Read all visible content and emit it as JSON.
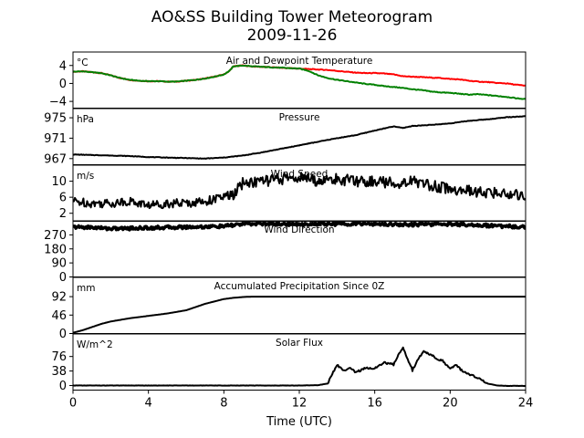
{
  "figure": {
    "title_line1": "AO&SS Building Tower Meteorogram",
    "title_line2": "2009-11-26",
    "xlabel": "Time (UTC)",
    "xticks": [
      "0",
      "4",
      "8",
      "12",
      "16",
      "20",
      "24"
    ]
  },
  "chart_data": [
    {
      "type": "line",
      "title": "Air and Dewpoint Temperature",
      "unit": "°C",
      "ylim": [
        -5.5,
        7
      ],
      "yticks": [
        -4,
        0,
        4
      ],
      "ytick_labels": [
        "−4",
        "0",
        "4"
      ],
      "xlim": [
        0,
        24
      ],
      "series": [
        {
          "color": "#ff0000",
          "x": [
            0,
            0.5,
            1,
            1.5,
            2,
            2.5,
            3,
            3.5,
            4,
            4.5,
            5,
            5.5,
            6,
            6.5,
            7,
            7.5,
            8,
            8.3,
            8.5,
            9,
            9.5,
            10,
            10.5,
            11,
            11.5,
            12,
            12.5,
            13,
            13.5,
            14,
            14.5,
            15,
            15.5,
            16,
            16.5,
            17,
            17.5,
            18,
            18.5,
            19,
            19.5,
            20,
            20.5,
            21,
            21.5,
            22,
            22.5,
            23,
            23.5,
            24
          ],
          "y": [
            2.6,
            2.7,
            2.5,
            2.3,
            1.8,
            1.2,
            0.8,
            0.6,
            0.5,
            0.5,
            0.4,
            0.4,
            0.6,
            0.8,
            1.1,
            1.5,
            2.0,
            2.8,
            3.8,
            4.0,
            3.8,
            3.7,
            3.6,
            3.5,
            3.4,
            3.3,
            3.2,
            3.1,
            3.0,
            2.8,
            2.6,
            2.4,
            2.3,
            2.3,
            2.2,
            2.0,
            1.6,
            1.5,
            1.4,
            1.3,
            1.2,
            1.0,
            0.9,
            0.6,
            0.4,
            0.3,
            0.1,
            0.0,
            -0.3,
            -0.5
          ]
        },
        {
          "color": "#008000",
          "x": [
            0,
            0.5,
            1,
            1.5,
            2,
            2.5,
            3,
            3.5,
            4,
            4.5,
            5,
            5.5,
            6,
            6.5,
            7,
            7.5,
            8,
            8.3,
            8.5,
            9,
            9.5,
            10,
            10.5,
            11,
            11.5,
            12,
            12.5,
            13,
            13.5,
            14,
            14.5,
            15,
            15.5,
            16,
            16.5,
            17,
            17.5,
            18,
            18.5,
            19,
            19.5,
            20,
            20.5,
            21,
            21.5,
            22,
            22.5,
            23,
            23.5,
            24
          ],
          "y": [
            2.6,
            2.7,
            2.5,
            2.3,
            1.8,
            1.2,
            0.8,
            0.6,
            0.5,
            0.5,
            0.4,
            0.4,
            0.6,
            0.8,
            1.1,
            1.5,
            2.0,
            2.8,
            3.8,
            4.0,
            3.8,
            3.7,
            3.6,
            3.5,
            3.4,
            3.3,
            2.8,
            1.8,
            1.2,
            0.8,
            0.5,
            0.2,
            -0.1,
            -0.3,
            -0.6,
            -0.8,
            -1.0,
            -1.3,
            -1.5,
            -1.8,
            -2.0,
            -2.1,
            -2.3,
            -2.5,
            -2.4,
            -2.6,
            -2.8,
            -3.0,
            -3.3,
            -3.5
          ]
        }
      ]
    },
    {
      "type": "line",
      "title": "Pressure",
      "unit": "hPa",
      "ylim": [
        965.8,
        976.8
      ],
      "yticks": [
        967,
        971,
        975
      ],
      "ytick_labels": [
        "967",
        "971",
        "975"
      ],
      "xlim": [
        0,
        24
      ],
      "series": [
        {
          "color": "#000000",
          "x": [
            0,
            1,
            2,
            3,
            4,
            5,
            6,
            7,
            8,
            9,
            10,
            11,
            12,
            13,
            14,
            15,
            16,
            17,
            17.5,
            18,
            19,
            20,
            21,
            22,
            23,
            24
          ],
          "y": [
            967.8,
            967.7,
            967.6,
            967.5,
            967.3,
            967.2,
            967.1,
            967.0,
            967.2,
            967.6,
            968.2,
            968.9,
            969.6,
            970.3,
            971.0,
            971.6,
            972.5,
            973.3,
            973.0,
            973.4,
            973.6,
            973.9,
            974.4,
            974.7,
            975.1,
            975.3
          ]
        }
      ]
    },
    {
      "type": "line",
      "title": "Wind Speed",
      "unit": "m/s",
      "ylim": [
        0,
        14
      ],
      "yticks": [
        2,
        6,
        10
      ],
      "ytick_labels": [
        "2",
        "6",
        "10"
      ],
      "xlim": [
        0,
        24
      ],
      "series": [
        {
          "color": "#000000",
          "x": [
            0,
            1,
            2,
            3,
            4,
            5,
            6,
            7,
            8,
            8.5,
            9,
            10,
            11,
            12,
            13,
            14,
            15,
            16,
            17,
            18,
            19,
            20,
            21,
            22,
            23,
            24
          ],
          "y": [
            5.0,
            4.5,
            4.5,
            5.0,
            4.0,
            4.5,
            4.5,
            5.0,
            6.0,
            6.5,
            9.5,
            10.0,
            10.5,
            11.0,
            10.0,
            10.5,
            10.0,
            10.0,
            9.5,
            10.0,
            9.0,
            8.0,
            7.5,
            7.0,
            7.0,
            6.5
          ]
        }
      ]
    },
    {
      "type": "line",
      "title": "Wind Direction",
      "unit": "",
      "ylim": [
        0,
        360
      ],
      "yticks": [
        0,
        90,
        180,
        270
      ],
      "ytick_labels": [
        "0",
        "90",
        "180",
        "270"
      ],
      "xlim": [
        0,
        24
      ],
      "series": [
        {
          "color": "#000000",
          "x": [
            0,
            1,
            2,
            3,
            4,
            5,
            6,
            7,
            8,
            9,
            10,
            11,
            12,
            13,
            14,
            15,
            16,
            17,
            18,
            19,
            20,
            21,
            22,
            23,
            24
          ],
          "y": [
            320,
            318,
            310,
            312,
            315,
            318,
            320,
            322,
            325,
            340,
            342,
            340,
            338,
            340,
            340,
            342,
            340,
            338,
            336,
            338,
            340,
            335,
            330,
            325,
            320
          ]
        }
      ]
    },
    {
      "type": "line",
      "title": "Accumulated Precipitation Since 0Z",
      "unit": "mm",
      "ylim": [
        0,
        140
      ],
      "yticks": [
        0,
        46,
        92
      ],
      "ytick_labels": [
        "0",
        "46",
        "92"
      ],
      "xlim": [
        0,
        24
      ],
      "series": [
        {
          "color": "#000000",
          "x": [
            0,
            0.5,
            1,
            1.5,
            2,
            3,
            4,
            5,
            6,
            6.5,
            7,
            7.5,
            8,
            8.5,
            9,
            9.5,
            24
          ],
          "y": [
            2,
            8,
            16,
            24,
            30,
            38,
            44,
            50,
            58,
            66,
            74,
            80,
            86,
            89,
            91,
            92,
            92
          ]
        }
      ]
    },
    {
      "type": "line",
      "title": "Solar Flux",
      "unit": "W/m^2",
      "ylim": [
        -12,
        135
      ],
      "yticks": [
        0,
        38,
        76
      ],
      "ytick_labels": [
        "0",
        "38",
        "76"
      ],
      "xlim": [
        0,
        24
      ],
      "series": [
        {
          "color": "#000000",
          "x": [
            0,
            2,
            4,
            6,
            8,
            10,
            12,
            13,
            13.5,
            14,
            14.3,
            14.7,
            15,
            15.5,
            16,
            16.5,
            17,
            17.3,
            17.5,
            17.7,
            18,
            18.3,
            18.6,
            19,
            19.3,
            19.6,
            20,
            20.3,
            20.6,
            21,
            21.5,
            22,
            22.5,
            23,
            24
          ],
          "y": [
            0,
            0,
            0,
            0,
            0,
            0,
            0,
            1,
            5,
            55,
            40,
            45,
            35,
            45,
            45,
            60,
            55,
            85,
            100,
            75,
            40,
            70,
            88,
            80,
            70,
            65,
            42,
            55,
            40,
            30,
            20,
            5,
            0,
            -1,
            -1
          ]
        }
      ]
    }
  ]
}
